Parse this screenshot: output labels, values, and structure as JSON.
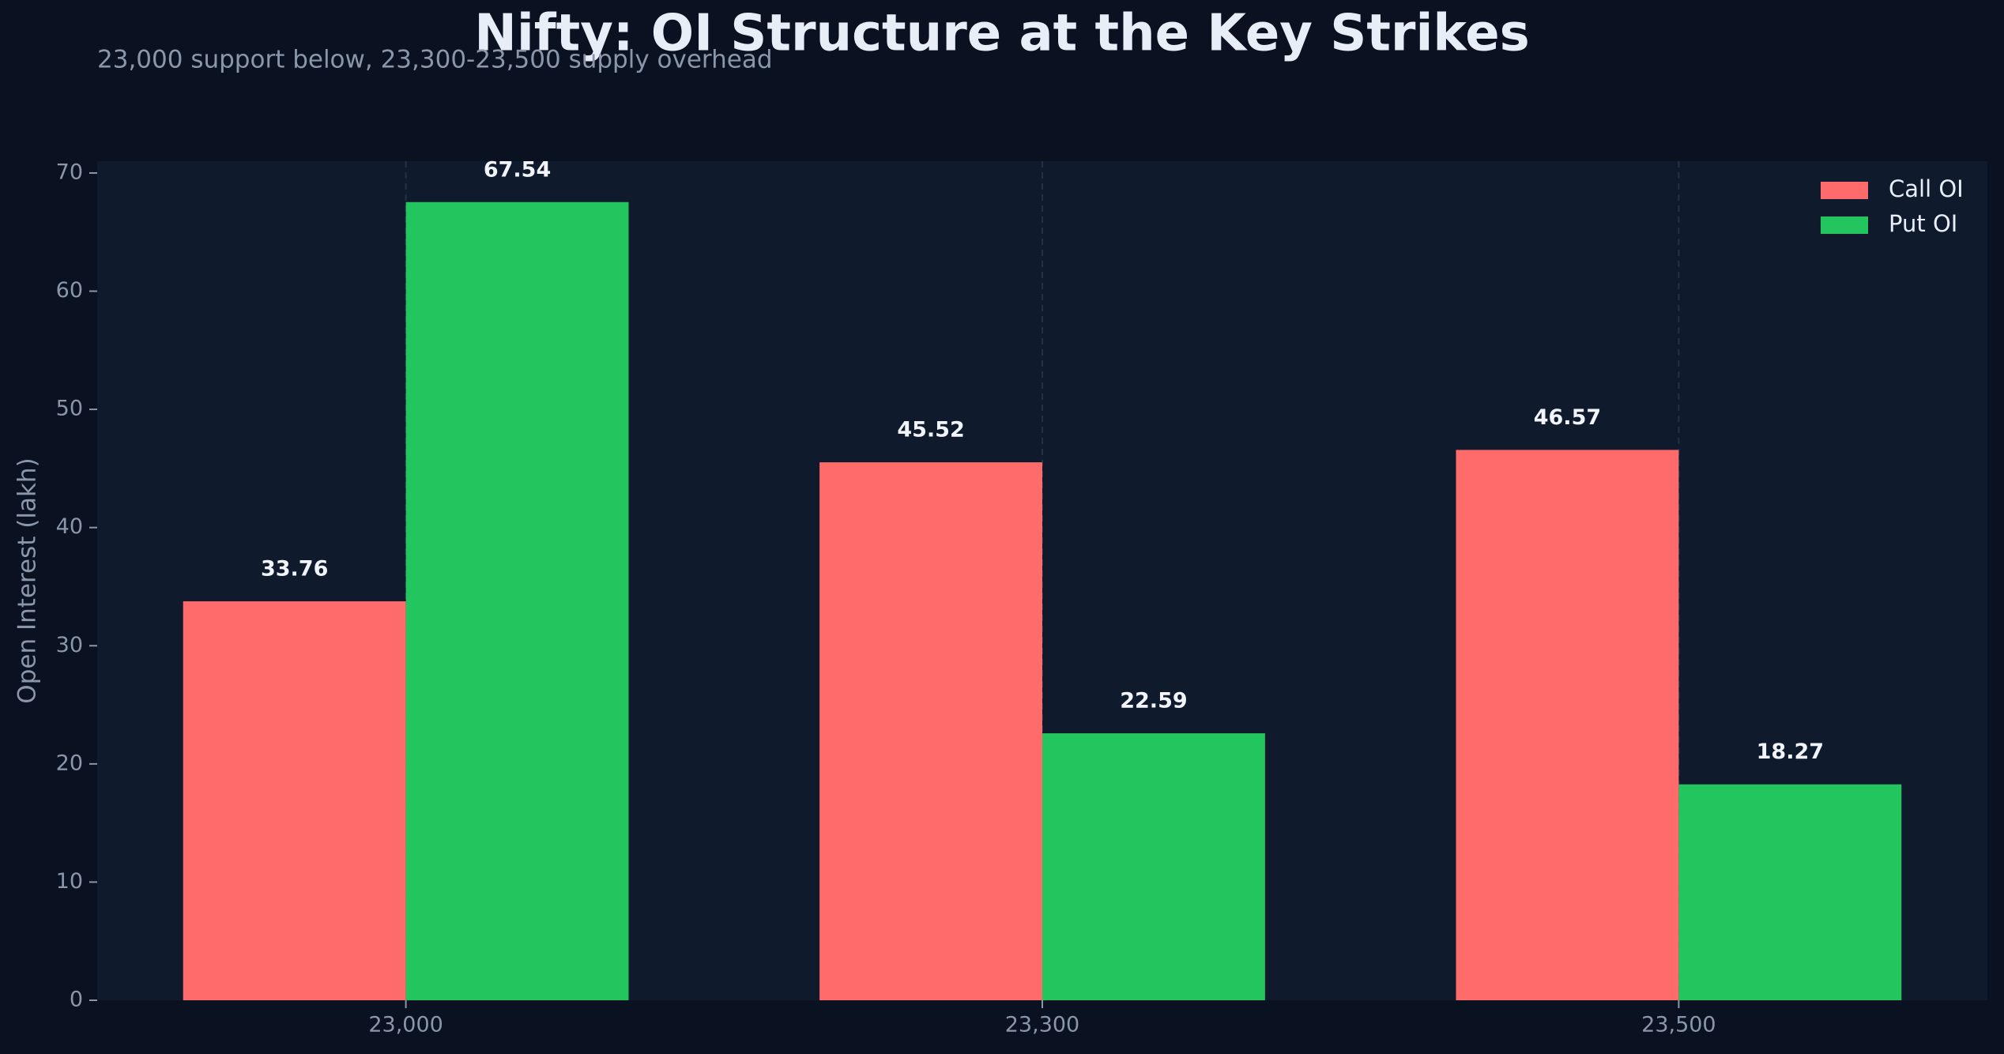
{
  "chart_data": {
    "type": "bar",
    "title": "Nifty: OI Structure at the Key Strikes",
    "subtitle": "23,000 support below, 23,300-23,500 supply overhead",
    "y_label": "Open Interest (lakh)",
    "categories": [
      "23,000",
      "23,300",
      "23,500"
    ],
    "series": [
      {
        "name": "Call OI",
        "color": "#ff6b6b",
        "values": [
          33.76,
          45.52,
          46.57
        ]
      },
      {
        "name": "Put OI",
        "color": "#22c55e",
        "values": [
          67.54,
          22.59,
          18.27
        ]
      }
    ],
    "ylim": [
      0,
      71
    ],
    "yticks": [
      0,
      10,
      20,
      30,
      40,
      50,
      60,
      70
    ],
    "grid": true,
    "legend": "upper right"
  }
}
